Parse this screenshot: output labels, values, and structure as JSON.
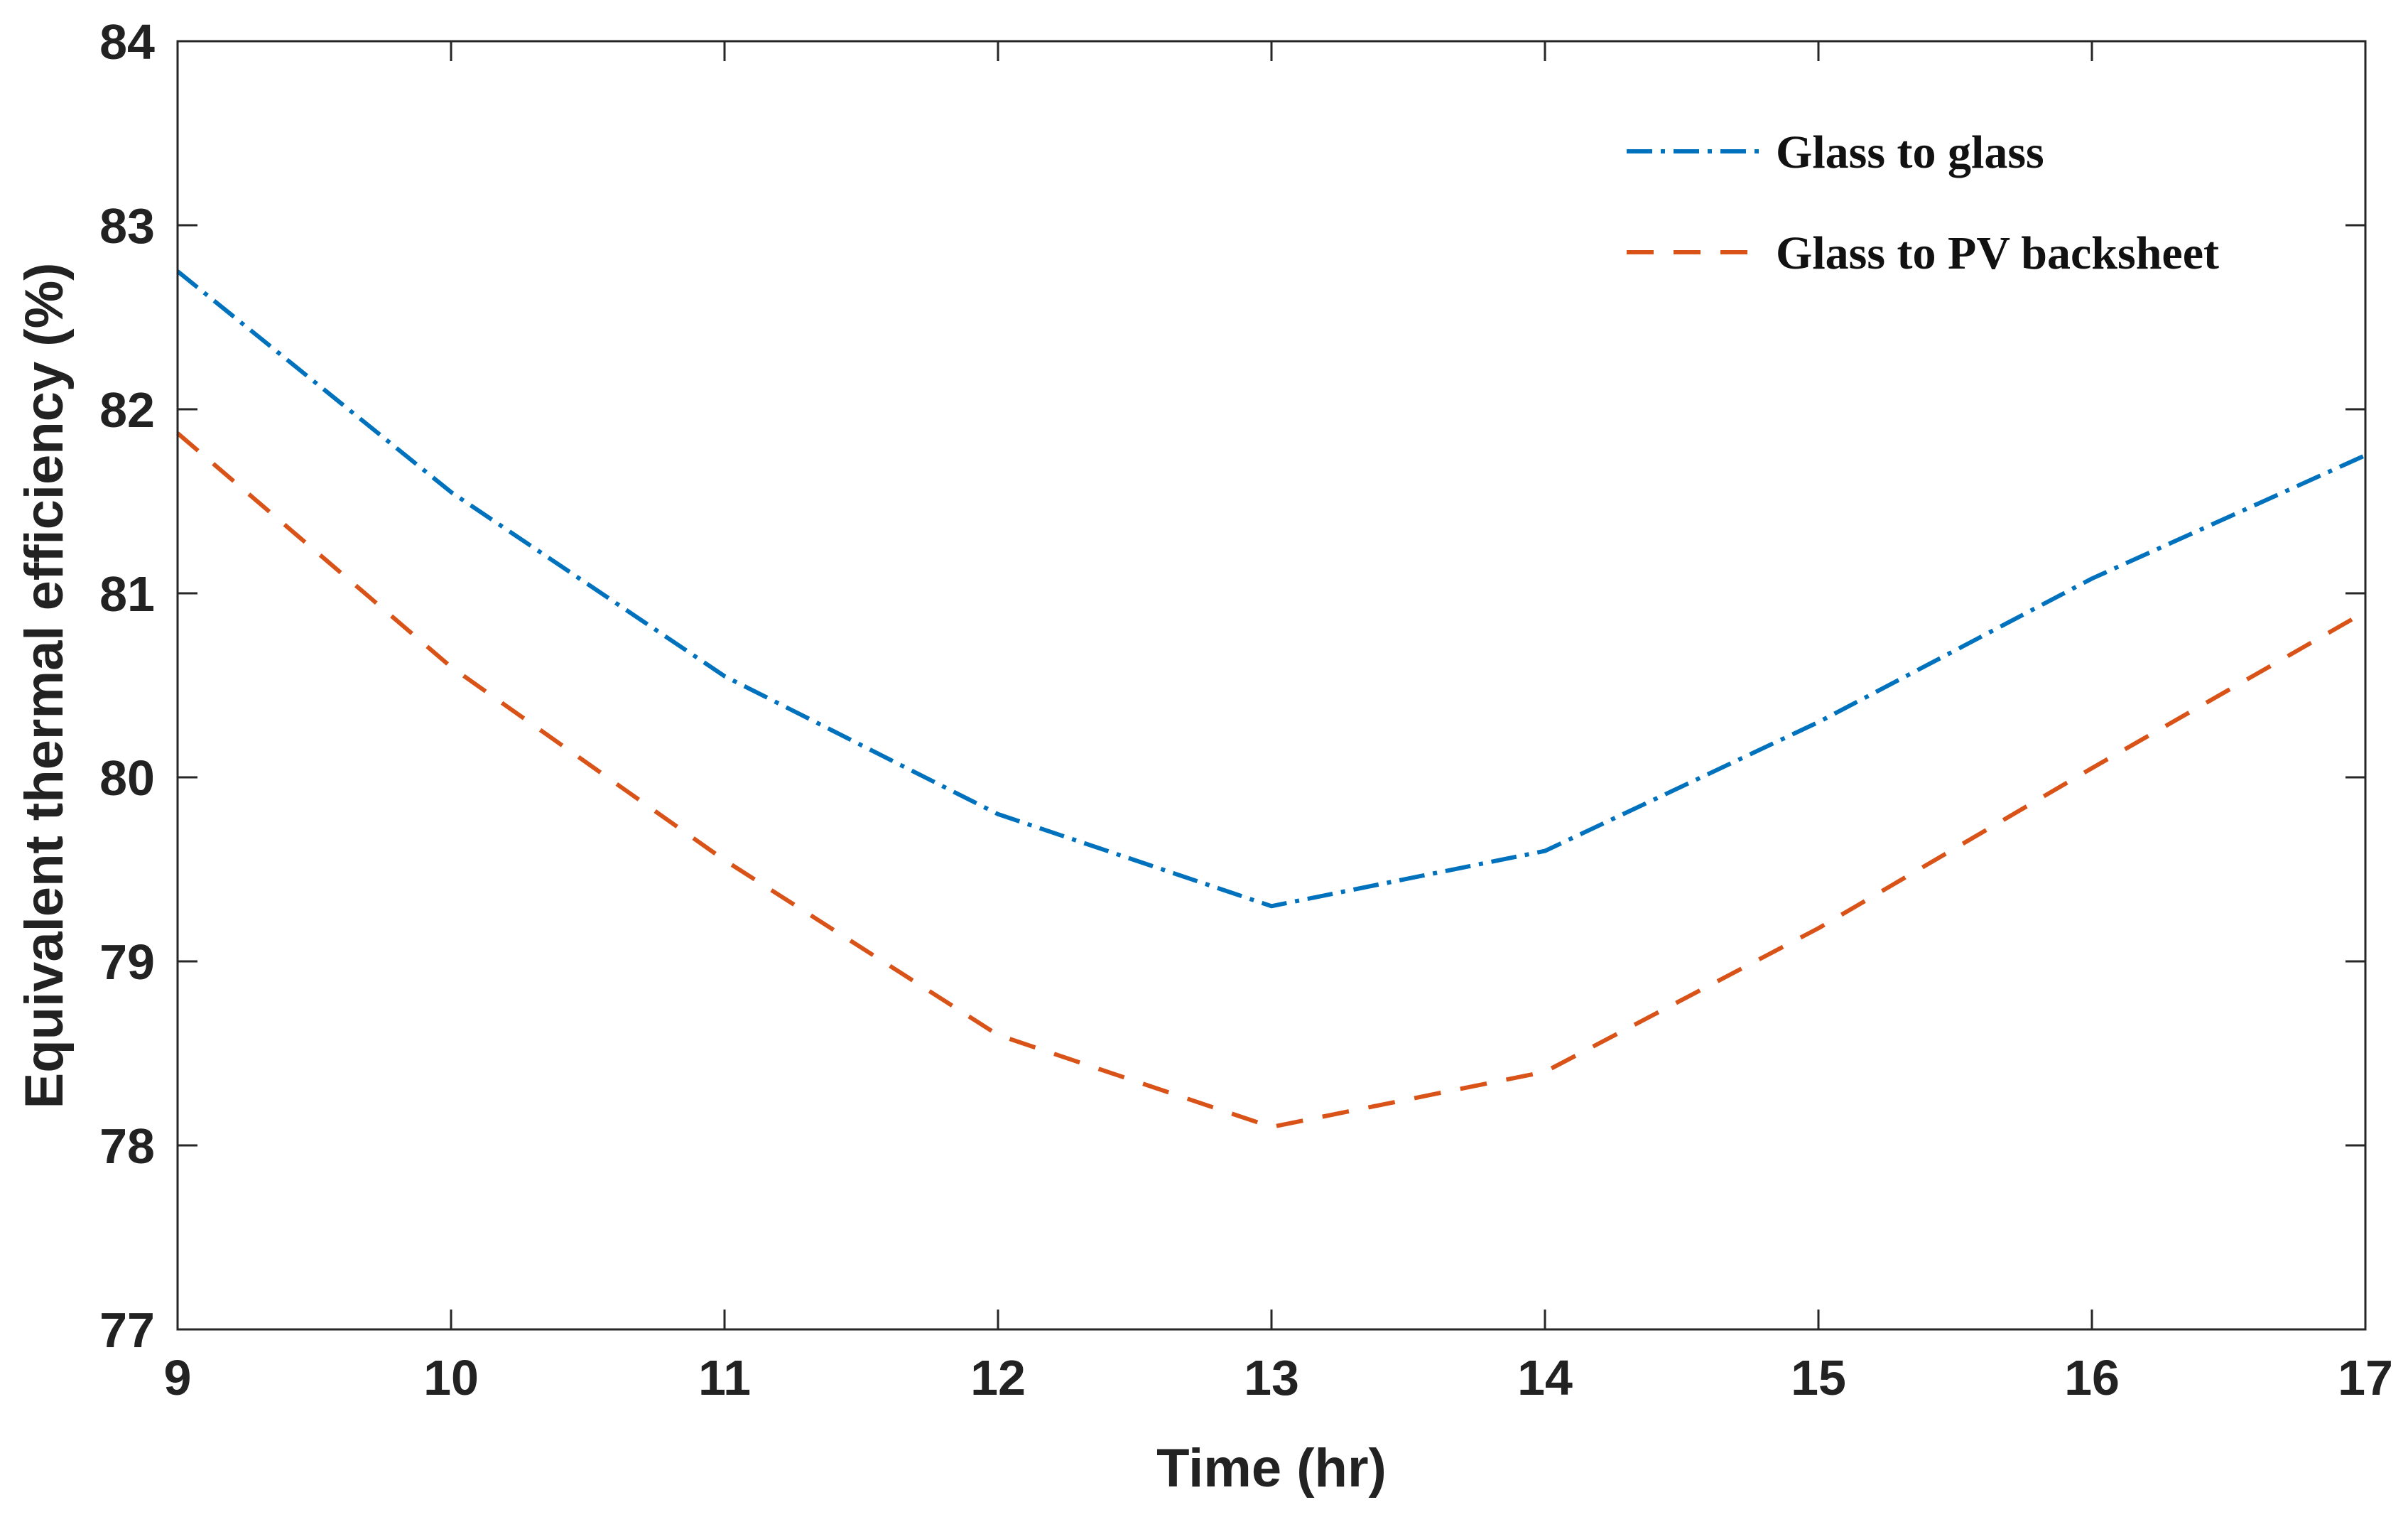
{
  "chart_data": {
    "type": "line",
    "title": "",
    "xlabel": "Time (hr)",
    "ylabel": "Equivalent thermal efficiency (%)",
    "xlim": [
      9,
      17
    ],
    "ylim": [
      77,
      84
    ],
    "xticks": [
      9,
      10,
      11,
      12,
      13,
      14,
      15,
      16,
      17
    ],
    "yticks": [
      77,
      78,
      79,
      80,
      81,
      82,
      83,
      84
    ],
    "x": [
      9,
      10,
      11,
      12,
      13,
      14,
      15,
      16,
      17
    ],
    "series": [
      {
        "name": "Glass to glass",
        "values": [
          82.75,
          81.55,
          80.55,
          79.8,
          79.3,
          79.6,
          80.3,
          81.08,
          81.75
        ],
        "color": "#0072BD",
        "style": "dash-dot"
      },
      {
        "name": "Glass to PV backsheet",
        "values": [
          81.87,
          80.6,
          79.55,
          78.6,
          78.1,
          78.4,
          79.18,
          80.05,
          80.9
        ],
        "color": "#D95319",
        "style": "dashed"
      }
    ],
    "grid": false,
    "legend_position": "top-right",
    "box": true
  }
}
